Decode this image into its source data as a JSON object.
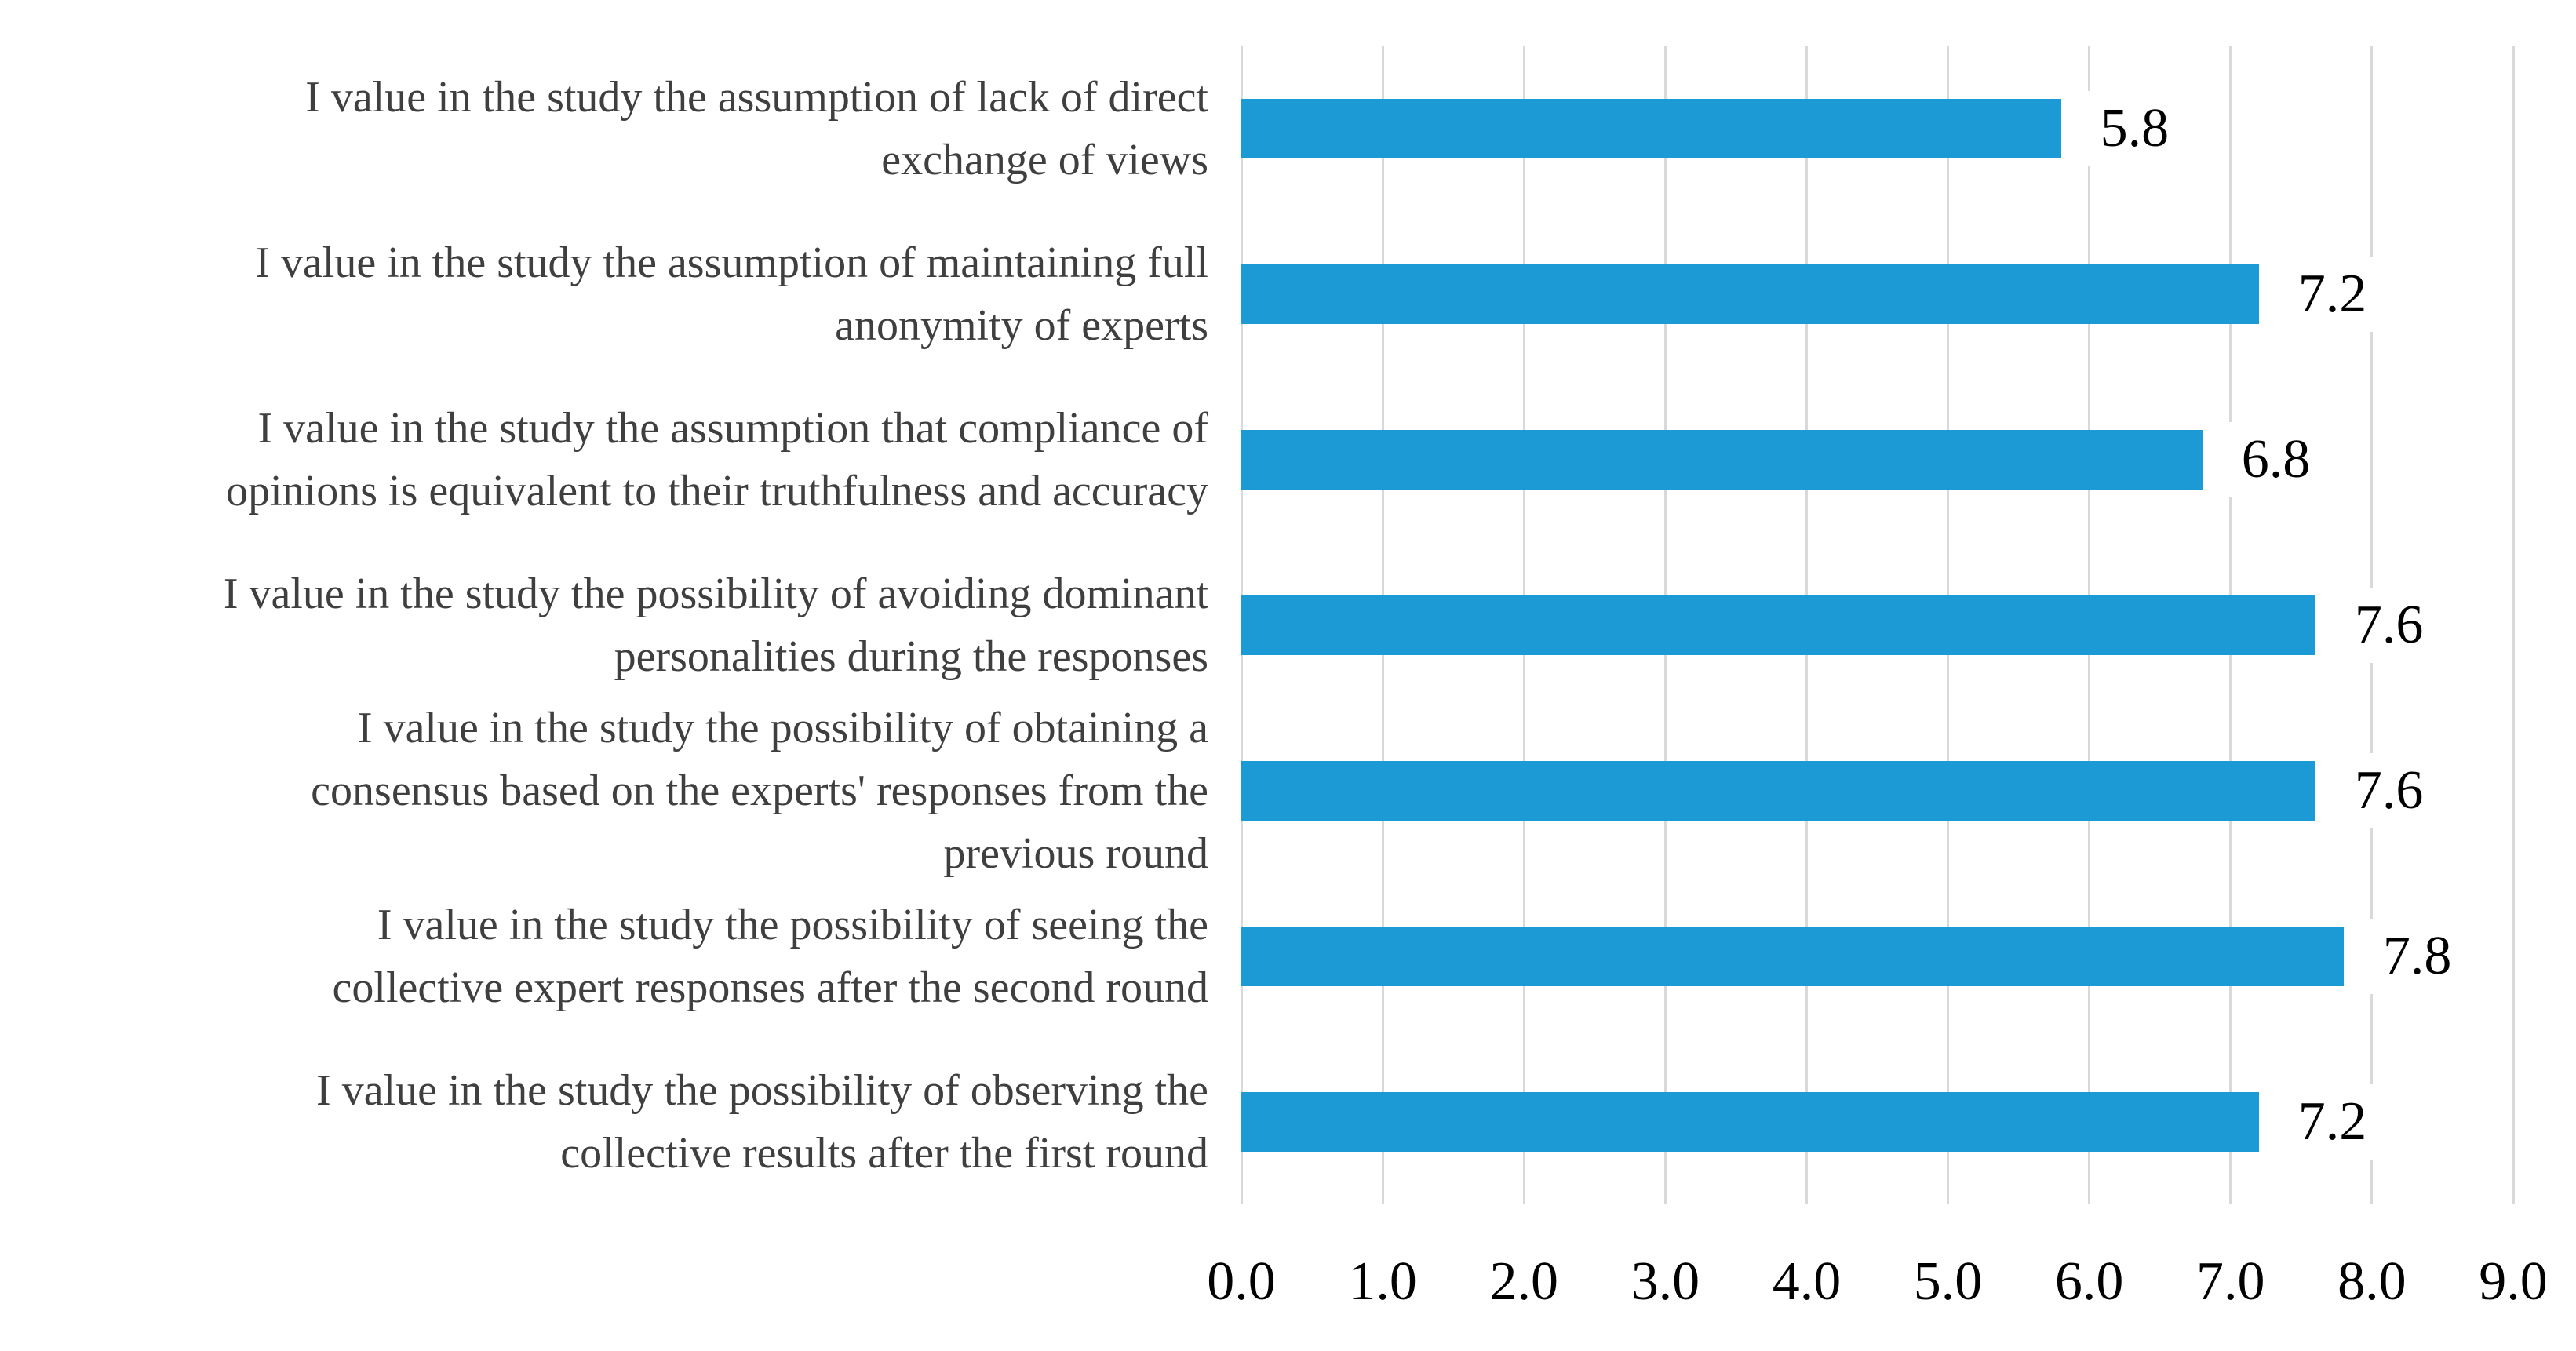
{
  "chart_data": {
    "type": "bar",
    "orientation": "horizontal",
    "title": "",
    "xlabel": "",
    "ylabel": "",
    "grid": true,
    "legend": false,
    "xlim": [
      0.0,
      9.0
    ],
    "x_tick_labels": [
      "0.0",
      "1.0",
      "2.0",
      "3.0",
      "4.0",
      "5.0",
      "6.0",
      "7.0",
      "8.0",
      "9.0"
    ],
    "categories": [
      "I value in the study the assumption of lack of direct\nexchange of views",
      "I value in the study the assumption of maintaining full\nanonymity of experts",
      "I value in the study the assumption that compliance of\nopinions is equivalent to their truthfulness and accuracy",
      "I value in the study the possibility of avoiding dominant\npersonalities during the responses",
      "I value in the study the possibility of obtaining a\nconsensus based on the experts' responses from the\nprevious round",
      "I value in the study the possibility of seeing the\ncollective expert responses after the second round",
      "I value in the study the possibility of observing the\ncollective results after the first round"
    ],
    "values": [
      5.8,
      7.2,
      6.8,
      7.6,
      7.6,
      7.8,
      7.2
    ],
    "value_labels": [
      "5.8",
      "7.2",
      "6.8",
      "7.6",
      "7.6",
      "7.8",
      "7.2"
    ],
    "colors": {
      "bar": "#1B9AD6",
      "gridline": "#D9D9D9",
      "category_text": "#3F3F3F",
      "number_text": "#000000",
      "background": "#FFFFFF"
    }
  }
}
